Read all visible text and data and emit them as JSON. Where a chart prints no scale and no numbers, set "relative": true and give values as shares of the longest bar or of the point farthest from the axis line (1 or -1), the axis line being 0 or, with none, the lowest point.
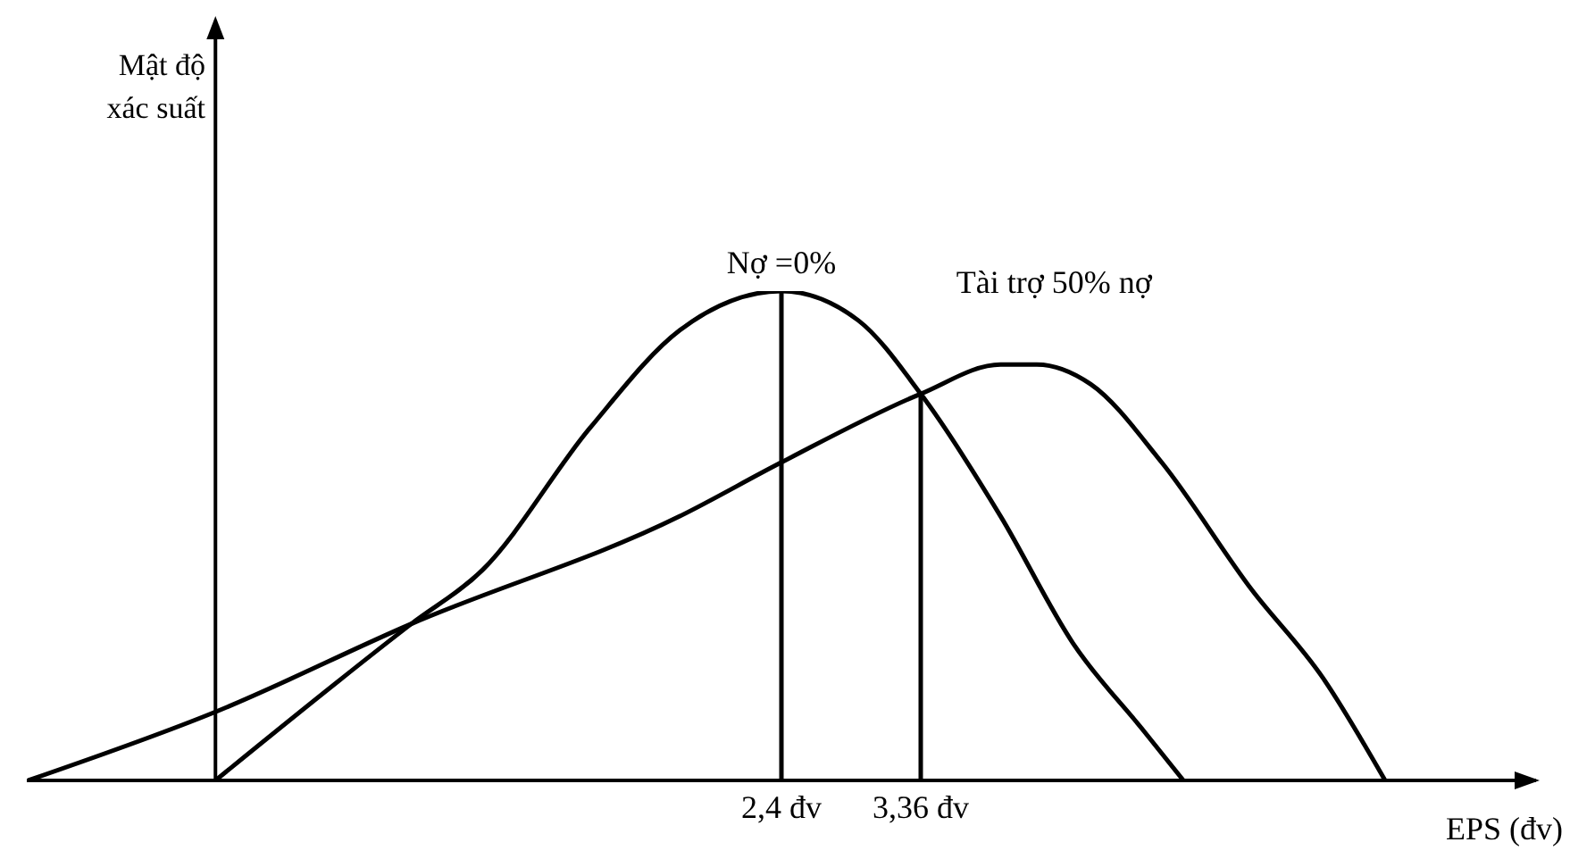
{
  "chart_data": {
    "type": "line",
    "relative": true,
    "xlabel": "EPS (đv)",
    "annotations": [
      "Mật độ xác suất"
    ],
    "xlim": [
      -2.8,
      7.6
    ],
    "xticks": [
      {
        "value": 2.4,
        "label": "2,4 đv"
      },
      {
        "value": 3.36,
        "label": "3,36 đv"
      }
    ],
    "series": [
      {
        "name": "Nợ =0%",
        "color": "#000000",
        "x": [
          -1.5,
          -0.15,
          0.34,
          1.08,
          1.7,
          2.4,
          2.93,
          3.36,
          3.91,
          4.41,
          4.9,
          5.17
        ],
        "values": [
          0,
          0.32,
          0.43,
          0.72,
          0.92,
          1,
          0.94,
          0.79,
          0.54,
          0.28,
          0.1,
          0
        ]
      },
      {
        "name": "Tài trợ 50% nợ",
        "color": "#000000",
        "x": [
          -2.79,
          -1.5,
          -0.15,
          1.7,
          2.4,
          3.36,
          3.91,
          4.16,
          4.53,
          5.02,
          5.64,
          6.13,
          6.56
        ],
        "values": [
          0,
          0.14,
          0.32,
          0.54,
          0.65,
          0.79,
          0.85,
          0.85,
          0.81,
          0.65,
          0.39,
          0.21,
          0
        ]
      }
    ],
    "ref_lines": [
      {
        "axis": "x",
        "value": -1.5,
        "color": "#000000"
      },
      {
        "axis": "x",
        "value": 2.4,
        "color": "#000000"
      },
      {
        "axis": "x",
        "value": 3.36,
        "color": "#000000"
      }
    ],
    "marker": "none",
    "line_style": "solid"
  }
}
